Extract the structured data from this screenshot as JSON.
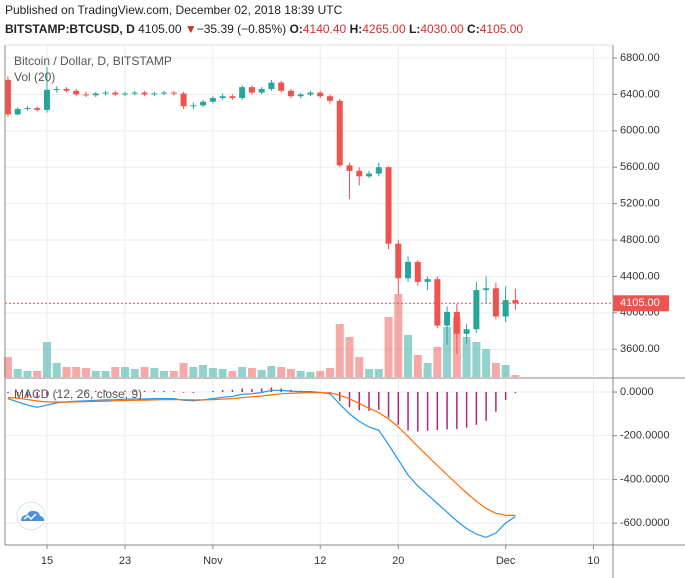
{
  "header": {
    "published": "Published on TradingView.com, December 02, 2018 18:39 UTC",
    "symbol": "BITSTAMP:BTCUSD, D",
    "price": "4105.00",
    "arrow": "▼",
    "change": "−35.39 (−0.85%)",
    "open_label": "O:",
    "open": "4140.40",
    "high_label": "H:",
    "high": "4265.00",
    "low_label": "L:",
    "low": "4030.00",
    "close_label": "C:",
    "close": "4105.00"
  },
  "chart_data": [
    {
      "type": "candlestick",
      "title": "Bitcoin / Dollar, D, BITSTAMP",
      "volume_title": "Vol (20)",
      "up_color": "#26a69a",
      "down_color": "#ef5350",
      "grid": true,
      "x": [
        0,
        1,
        2,
        3,
        4,
        5,
        6,
        7,
        8,
        9,
        10,
        11,
        12,
        13,
        14,
        15,
        16,
        17,
        18,
        19,
        20,
        21,
        22,
        23,
        24,
        25,
        26,
        27,
        28,
        29,
        30,
        31,
        32,
        33,
        34,
        35,
        36,
        37,
        38,
        39,
        40,
        41,
        42,
        43,
        44,
        45,
        46,
        47,
        48,
        49,
        50,
        51,
        52
      ],
      "open": [
        6560,
        6180,
        6240,
        6250,
        6230,
        6450,
        6460,
        6440,
        6400,
        6390,
        6410,
        6420,
        6400,
        6410,
        6420,
        6400,
        6410,
        6420,
        6410,
        6270,
        6280,
        6320,
        6360,
        6380,
        6360,
        6480,
        6420,
        6460,
        6530,
        6440,
        6380,
        6400,
        6420,
        6380,
        6330,
        5620,
        5560,
        5500,
        5530,
        5600,
        4760,
        4380,
        4560,
        4340,
        4370,
        3860,
        4010,
        3770,
        3820,
        4250,
        4270,
        3960,
        4140.4
      ],
      "close": [
        6180,
        6240,
        6250,
        6230,
        6450,
        6460,
        6440,
        6400,
        6390,
        6410,
        6420,
        6400,
        6410,
        6420,
        6400,
        6410,
        6420,
        6410,
        6270,
        6280,
        6320,
        6360,
        6380,
        6360,
        6480,
        6420,
        6460,
        6530,
        6440,
        6380,
        6400,
        6420,
        6380,
        6330,
        5620,
        5560,
        5500,
        5530,
        5600,
        4760,
        4380,
        4560,
        4340,
        4370,
        3860,
        4010,
        3770,
        3820,
        4250,
        4270,
        3960,
        4140,
        4105
      ],
      "high": [
        6600,
        6260,
        6270,
        6270,
        6700,
        6490,
        6480,
        6460,
        6430,
        6430,
        6440,
        6440,
        6430,
        6440,
        6440,
        6430,
        6440,
        6440,
        6430,
        6310,
        6340,
        6380,
        6410,
        6400,
        6500,
        6500,
        6480,
        6560,
        6550,
        6460,
        6420,
        6440,
        6440,
        6400,
        6350,
        5650,
        5600,
        5560,
        5650,
        5610,
        4800,
        4620,
        4580,
        4400,
        4400,
        4070,
        4100,
        3880,
        4340,
        4400,
        4330,
        4290,
        4265
      ],
      "low": [
        6150,
        6170,
        6220,
        6210,
        6200,
        6420,
        6420,
        6380,
        6370,
        6370,
        6390,
        6380,
        6380,
        6390,
        6380,
        6380,
        6390,
        6390,
        6240,
        6240,
        6260,
        6300,
        6340,
        6340,
        6340,
        6400,
        6400,
        6440,
        6420,
        6360,
        6360,
        6380,
        6360,
        6300,
        5600,
        5250,
        5400,
        5480,
        5500,
        4700,
        4200,
        4340,
        4300,
        4250,
        3830,
        3650,
        3550,
        3660,
        3780,
        4110,
        3930,
        3900,
        4030
      ],
      "volume": [
        20,
        8,
        6,
        6,
        35,
        14,
        10,
        10,
        9,
        6,
        6,
        10,
        10,
        8,
        10,
        9,
        6,
        6,
        14,
        10,
        12,
        9,
        8,
        6,
        10,
        9,
        7,
        11,
        10,
        8,
        6,
        5,
        6,
        9,
        53,
        40,
        20,
        8,
        8,
        60,
        83,
        42,
        22,
        14,
        30,
        50,
        60,
        40,
        35,
        28,
        14,
        12,
        2
      ],
      "volume_ylim": [
        0,
        100
      ],
      "last_price": {
        "value": 4105,
        "label": "4105.00",
        "color": "#ef5350"
      },
      "xlim": [
        -0.3,
        62
      ],
      "ylim": [
        3295,
        6943
      ],
      "yticks": [
        {
          "value": 3600,
          "label": "3600.00"
        },
        {
          "value": 4000,
          "label": "4000.00"
        },
        {
          "value": 4400,
          "label": "4400.00"
        },
        {
          "value": 4800,
          "label": "4800.00"
        },
        {
          "value": 5200,
          "label": "5200.00"
        },
        {
          "value": 5600,
          "label": "5600.00"
        },
        {
          "value": 6000,
          "label": "6000.00"
        },
        {
          "value": 6400,
          "label": "6400.00"
        },
        {
          "value": 6800,
          "label": "6800.00"
        }
      ]
    },
    {
      "type": "line",
      "title": "MACD (12, 26, close, 9)",
      "grid": true,
      "x": [
        0,
        1,
        2,
        3,
        4,
        5,
        6,
        7,
        8,
        9,
        10,
        11,
        12,
        13,
        14,
        15,
        16,
        17,
        18,
        19,
        20,
        21,
        22,
        23,
        24,
        25,
        26,
        27,
        28,
        29,
        30,
        31,
        32,
        33,
        34,
        35,
        36,
        37,
        38,
        39,
        40,
        41,
        42,
        43,
        44,
        45,
        46,
        47,
        48,
        49,
        50,
        51,
        52
      ],
      "series": [
        {
          "color": "#2196f3",
          "values": [
            -30,
            -45,
            -60,
            -70,
            -60,
            -50,
            -45,
            -42,
            -40,
            -38,
            -36,
            -35,
            -33,
            -32,
            -32,
            -30,
            -30,
            -30,
            -38,
            -40,
            -36,
            -30,
            -24,
            -20,
            -10,
            -8,
            -2,
            8,
            8,
            4,
            2,
            2,
            -2,
            -8,
            -55,
            -100,
            -135,
            -160,
            -175,
            -240,
            -310,
            -380,
            -430,
            -470,
            -510,
            -550,
            -590,
            -625,
            -650,
            -665,
            -645,
            -600,
            -570
          ]
        },
        {
          "color": "#ff6d00",
          "values": [
            -25,
            -28,
            -34,
            -41,
            -45,
            -46,
            -46,
            -45,
            -44,
            -43,
            -42,
            -40,
            -39,
            -38,
            -37,
            -36,
            -35,
            -34,
            -35,
            -36,
            -36,
            -35,
            -33,
            -30,
            -26,
            -22,
            -18,
            -13,
            -8,
            -6,
            -4,
            -3,
            -3,
            -4,
            -14,
            -31,
            -52,
            -74,
            -94,
            -123,
            -160,
            -204,
            -249,
            -293,
            -336,
            -379,
            -421,
            -462,
            -500,
            -533,
            -555,
            -564,
            -565
          ]
        }
      ],
      "histogram": {
        "color": "#b0247a",
        "values": [
          -5,
          -17,
          -26,
          -29,
          -15,
          -4,
          1,
          3,
          4,
          5,
          6,
          5,
          6,
          6,
          5,
          6,
          5,
          4,
          -3,
          -4,
          0,
          5,
          9,
          10,
          16,
          14,
          16,
          21,
          16,
          10,
          6,
          5,
          1,
          -4,
          -41,
          -69,
          -83,
          -86,
          -81,
          -117,
          -150,
          -176,
          -181,
          -177,
          -174,
          -171,
          -169,
          -163,
          -150,
          -132,
          -90,
          -36,
          -5
        ]
      },
      "xlim": [
        -0.3,
        62
      ],
      "ylim": [
        -700,
        55
      ],
      "yticks": [
        {
          "value": -600,
          "label": "-600.0000"
        },
        {
          "value": -400,
          "label": "-400.0000"
        },
        {
          "value": -200,
          "label": "-200.0000"
        },
        {
          "value": 0,
          "label": "0.0000"
        }
      ],
      "xticks": [
        {
          "value": 4,
          "label": "15"
        },
        {
          "value": 12,
          "label": "23"
        },
        {
          "value": 21,
          "label": "Nov"
        },
        {
          "value": 32,
          "label": "12"
        },
        {
          "value": 40,
          "label": "20"
        },
        {
          "value": 51,
          "label": "Dec"
        },
        {
          "value": 60,
          "label": "10"
        }
      ]
    }
  ]
}
